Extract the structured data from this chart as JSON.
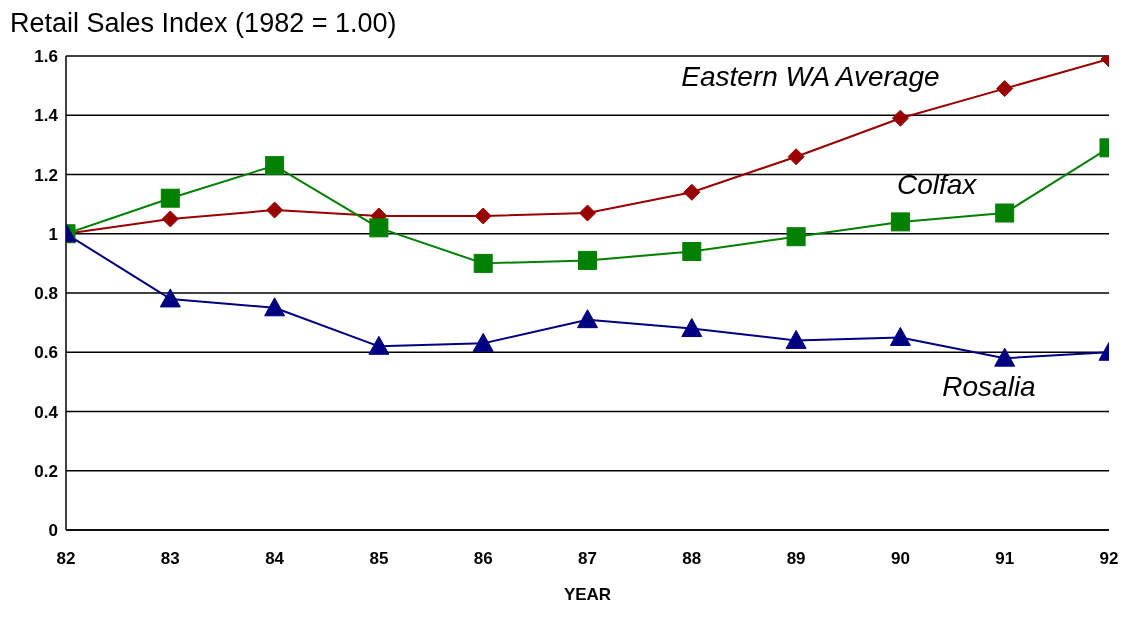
{
  "chart_data": {
    "type": "line",
    "title": "Retail Sales Index (1982 = 1.00)",
    "xlabel": "YEAR",
    "x": [
      82,
      83,
      84,
      85,
      86,
      87,
      88,
      89,
      90,
      91,
      92
    ],
    "xlim": [
      82,
      92
    ],
    "xticks": [
      82,
      83,
      84,
      85,
      86,
      87,
      88,
      89,
      90,
      91,
      92
    ],
    "ylim": [
      0,
      1.6
    ],
    "yticks": [
      0,
      0.2,
      0.4,
      0.6,
      0.8,
      1,
      1.2,
      1.4,
      1.6
    ],
    "grid": "y",
    "legend": false,
    "series": [
      {
        "name": "Eastern WA Average",
        "color": "#990000",
        "marker": "diamond",
        "values": [
          1.0,
          1.05,
          1.08,
          1.06,
          1.06,
          1.07,
          1.14,
          1.26,
          1.39,
          1.49,
          1.59
        ]
      },
      {
        "name": "Colfax",
        "color": "#008000",
        "marker": "square",
        "values": [
          1.0,
          1.12,
          1.23,
          1.02,
          0.9,
          0.91,
          0.94,
          0.99,
          1.04,
          1.07,
          1.29
        ]
      },
      {
        "name": "Rosalia",
        "color": "#000080",
        "marker": "triangle",
        "values": [
          1.0,
          0.78,
          0.75,
          0.62,
          0.63,
          0.71,
          0.68,
          0.64,
          0.65,
          0.58,
          0.6
        ]
      }
    ]
  }
}
